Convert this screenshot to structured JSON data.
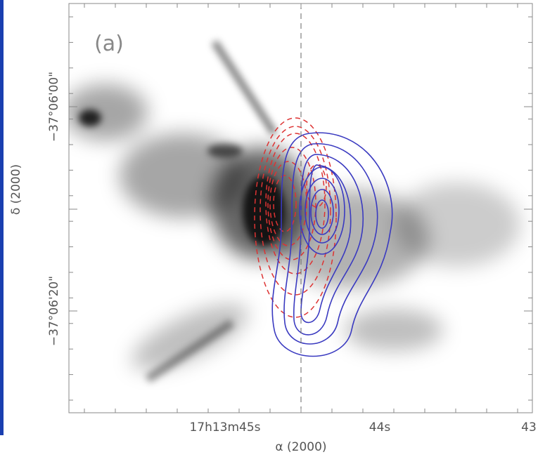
{
  "figure": {
    "panel_label": "(a)",
    "x_axis": {
      "label": "α (2000)",
      "ticks": [
        "17h13m45s",
        "44s",
        "43"
      ]
    },
    "y_axis": {
      "label": "δ (2000)",
      "ticks": [
        "−37°06'00\"",
        "−37°06'20\""
      ]
    }
  }
}
